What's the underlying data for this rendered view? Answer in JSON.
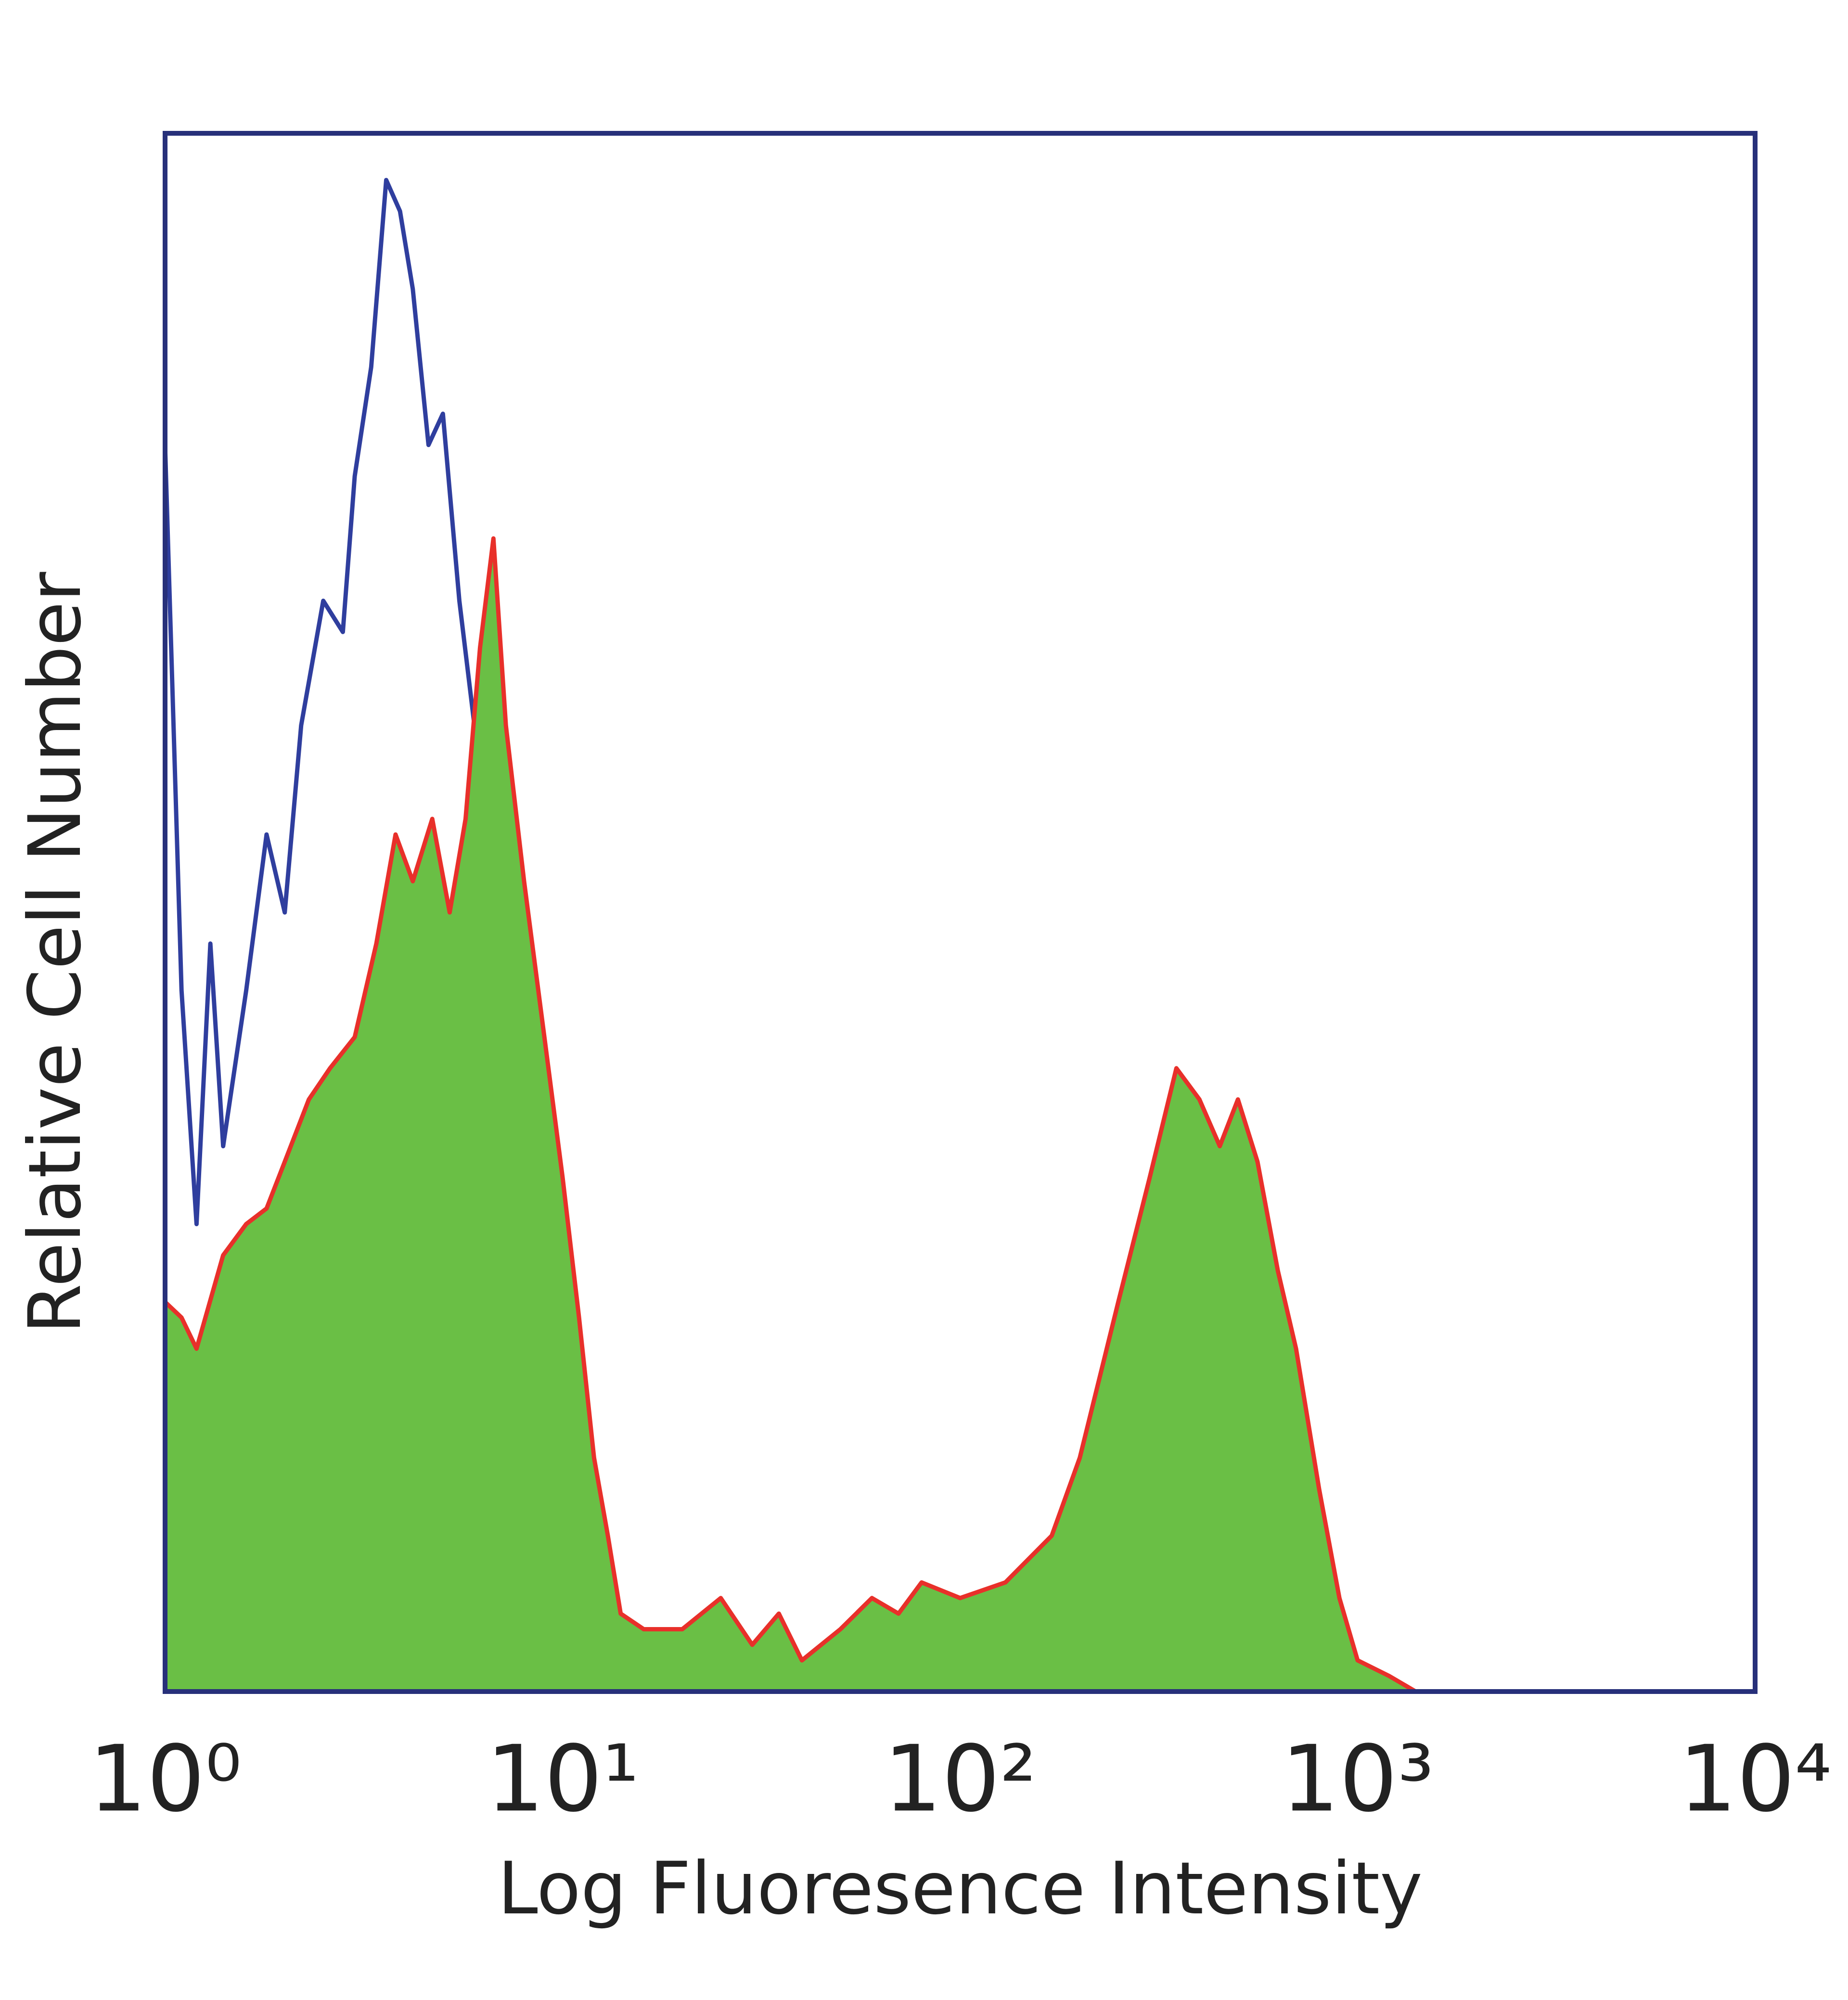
{
  "chart_data": {
    "type": "line",
    "x_label": "Log Fluoresence Intensity",
    "y_label": "Relative Cell Number",
    "xscale": "log",
    "xlim": [
      1,
      10000
    ],
    "ylim": [
      0,
      100
    ],
    "xticks": [
      {
        "value": 1,
        "label": "10⁰"
      },
      {
        "value": 10,
        "label": "10¹"
      },
      {
        "value": 100,
        "label": "10²"
      },
      {
        "value": 1000,
        "label": "10³"
      },
      {
        "value": 10000,
        "label": "10⁴"
      }
    ],
    "frame_color": "#27307a",
    "series": [
      {
        "color": "#2f3e9e",
        "filled": false,
        "x": [
          1,
          1.1,
          1.2,
          1.3,
          1.4,
          1.6,
          1.8,
          2,
          2.2,
          2.5,
          2.8,
          3,
          3.3,
          3.6,
          3.9,
          4.2,
          4.6,
          5,
          5.5,
          6,
          6.5,
          7,
          8,
          9,
          10,
          11,
          12,
          12.5
        ],
        "values": [
          80,
          45,
          30,
          48,
          35,
          45,
          55,
          50,
          62,
          70,
          68,
          78,
          85,
          97,
          95,
          90,
          80,
          82,
          70,
          62,
          52,
          40,
          33,
          24,
          17,
          8,
          2,
          0
        ]
      },
      {
        "color": "#e8302a",
        "fill": "#6abf45",
        "filled": true,
        "x": [
          1,
          1.1,
          1.2,
          1.4,
          1.6,
          1.8,
          2,
          2.3,
          2.6,
          3,
          3.4,
          3.8,
          4.2,
          4.7,
          5.2,
          5.7,
          6.2,
          6.7,
          7.2,
          8,
          9,
          10,
          11,
          12,
          13,
          14,
          16,
          20,
          25,
          30,
          35,
          40,
          50,
          60,
          70,
          80,
          100,
          130,
          170,
          200,
          250,
          300,
          350,
          400,
          450,
          500,
          560,
          630,
          700,
          800,
          900,
          1000,
          1200,
          1400
        ],
        "values": [
          25,
          24,
          22,
          28,
          30,
          31,
          34,
          38,
          40,
          42,
          48,
          55,
          52,
          56,
          50,
          56,
          67,
          74,
          62,
          52,
          42,
          33,
          24,
          15,
          10,
          5,
          4,
          4,
          6,
          3,
          5,
          2,
          4,
          6,
          5,
          7,
          6,
          7,
          10,
          15,
          25,
          33,
          40,
          38,
          35,
          38,
          34,
          27,
          22,
          13,
          6,
          2,
          1,
          0
        ]
      }
    ]
  }
}
